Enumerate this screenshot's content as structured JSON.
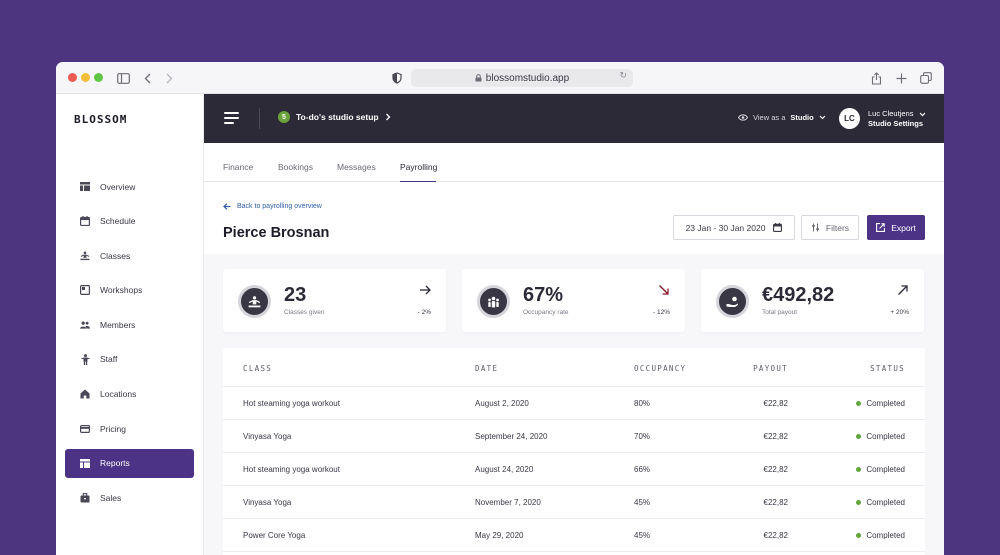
{
  "browser": {
    "url": "blossomstudio.app"
  },
  "brand": {
    "logo": "BLOSSOM",
    "accent": "#4d3385"
  },
  "sidebar": {
    "items": [
      {
        "label": "Overview",
        "icon": "overview-icon"
      },
      {
        "label": "Schedule",
        "icon": "calendar-icon"
      },
      {
        "label": "Classes",
        "icon": "meditation-icon"
      },
      {
        "label": "Workshops",
        "icon": "workshop-icon"
      },
      {
        "label": "Members",
        "icon": "members-icon"
      },
      {
        "label": "Staff",
        "icon": "staff-icon"
      },
      {
        "label": "Locations",
        "icon": "home-icon"
      },
      {
        "label": "Pricing",
        "icon": "card-icon"
      },
      {
        "label": "Reports",
        "icon": "reports-icon",
        "active": true
      },
      {
        "label": "Sales",
        "icon": "bag-icon"
      }
    ]
  },
  "topbar": {
    "todo_count": "5",
    "todo_label": "To-do's studio setup",
    "view_prefix": "View as a",
    "view_value": "Studio",
    "avatar_initials": "LC",
    "user_name": "Luc Cleutjens",
    "user_role": "Studio Settings"
  },
  "tabs": [
    {
      "label": "Finance"
    },
    {
      "label": "Bookings"
    },
    {
      "label": "Messages"
    },
    {
      "label": "Payrolling",
      "active": true
    }
  ],
  "page": {
    "back_label": "Back to payrolling overview",
    "person": "Pierce Brosnan",
    "date_range": "23 Jan - 30 Jan 2020",
    "filters_label": "Filters",
    "export_label": "Export"
  },
  "stats": [
    {
      "value": "23",
      "label": "Classes given",
      "change": "- 2%",
      "trend": "right",
      "icon": "meditation-icon"
    },
    {
      "value": "67%",
      "label": "Occupancy rate",
      "change": "- 12%",
      "trend": "down-right",
      "icon": "group-icon"
    },
    {
      "value": "€492,82",
      "label": "Total payout",
      "change": "+ 20%",
      "trend": "up-right",
      "icon": "payout-icon"
    }
  ],
  "table": {
    "headers": {
      "class": "CLASS",
      "date": "DATE",
      "occupancy": "OCCUPANCY",
      "payout": "PAYOUT",
      "status": "STATUS"
    },
    "rows": [
      {
        "class": "Hot steaming yoga workout",
        "date": "August 2, 2020",
        "occupancy": "80%",
        "payout": "€22,82",
        "status": "Completed"
      },
      {
        "class": "Vinyasa Yoga",
        "date": "September 24, 2020",
        "occupancy": "70%",
        "payout": "€22,82",
        "status": "Completed"
      },
      {
        "class": "Hot steaming yoga workout",
        "date": "August 24, 2020",
        "occupancy": "66%",
        "payout": "€22,82",
        "status": "Completed"
      },
      {
        "class": "Vinyasa Yoga",
        "date": "November 7, 2020",
        "occupancy": "45%",
        "payout": "€22,82",
        "status": "Completed"
      },
      {
        "class": "Power Core Yoga",
        "date": "May 29, 2020",
        "occupancy": "45%",
        "payout": "€22,82",
        "status": "Completed"
      }
    ]
  }
}
